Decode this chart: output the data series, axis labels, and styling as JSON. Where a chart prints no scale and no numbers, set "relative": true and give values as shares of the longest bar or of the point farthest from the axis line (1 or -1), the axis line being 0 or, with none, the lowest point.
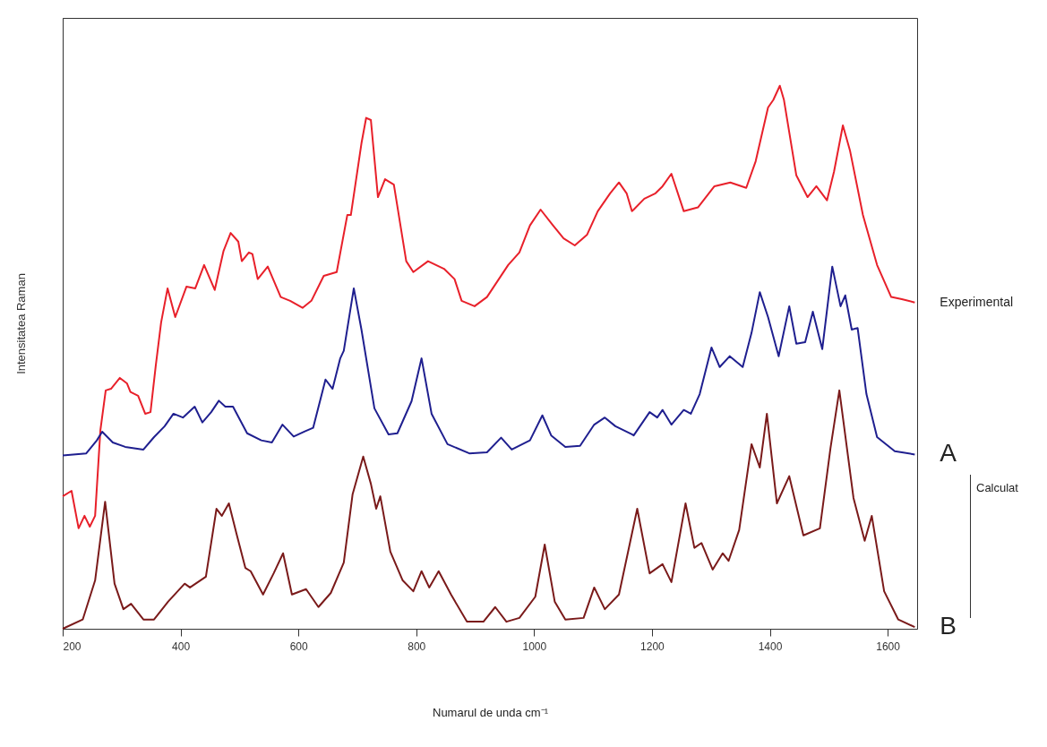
{
  "chart_data": {
    "type": "line",
    "relative": true,
    "xlabel": "Numarul de unda cm⁻¹",
    "ylabel": "Intensitatea Raman",
    "xlim": [
      200,
      1650
    ],
    "xticks": [
      200,
      400,
      600,
      800,
      1000,
      1200,
      1400,
      1600
    ],
    "grid": false,
    "legend": false,
    "annotations": [
      "Calculat"
    ],
    "series": [
      {
        "name": "Experimental",
        "color": "#e8202a",
        "x": [
          200,
          215,
          227,
          237,
          246,
          255,
          264,
          273,
          282,
          297,
          309,
          315,
          328,
          340,
          349,
          358,
          367,
          378,
          391,
          410,
          425,
          440,
          458,
          473,
          485,
          498,
          504,
          516,
          522,
          531,
          548,
          570,
          586,
          607,
          622,
          643,
          665,
          683,
          689,
          707,
          715,
          723,
          735,
          747,
          762,
          783,
          795,
          820,
          847,
          865,
          877,
          899,
          920,
          956,
          975,
          993,
          1011,
          1032,
          1050,
          1069,
          1090,
          1108,
          1129,
          1144,
          1157,
          1166,
          1169,
          1187,
          1206,
          1218,
          1233,
          1254,
          1278,
          1306,
          1333,
          1360,
          1376,
          1397,
          1406,
          1417,
          1424,
          1445,
          1464,
          1479,
          1497,
          1509,
          1524,
          1536,
          1558,
          1582,
          1606,
          1624,
          1646
        ],
        "values": [
          0.244,
          0.254,
          0.185,
          0.208,
          0.188,
          0.208,
          0.366,
          0.439,
          0.442,
          0.462,
          0.452,
          0.436,
          0.429,
          0.396,
          0.399,
          0.485,
          0.564,
          0.627,
          0.574,
          0.63,
          0.627,
          0.67,
          0.624,
          0.696,
          0.729,
          0.713,
          0.677,
          0.693,
          0.69,
          0.644,
          0.667,
          0.611,
          0.604,
          0.591,
          0.604,
          0.65,
          0.657,
          0.762,
          0.762,
          0.894,
          0.941,
          0.937,
          0.795,
          0.828,
          0.818,
          0.677,
          0.657,
          0.677,
          0.663,
          0.644,
          0.604,
          0.594,
          0.611,
          0.67,
          0.693,
          0.743,
          0.772,
          0.743,
          0.719,
          0.706,
          0.726,
          0.769,
          0.802,
          0.822,
          0.802,
          0.769,
          0.772,
          0.792,
          0.802,
          0.815,
          0.838,
          0.769,
          0.776,
          0.815,
          0.822,
          0.812,
          0.861,
          0.96,
          0.974,
          1.0,
          0.974,
          0.835,
          0.795,
          0.815,
          0.789,
          0.842,
          0.927,
          0.881,
          0.762,
          0.67,
          0.611,
          0.607,
          0.601
        ]
      },
      {
        "name": "A",
        "color": "#1f1f8f",
        "x": [
          200,
          240,
          258,
          267,
          285,
          306,
          337,
          355,
          373,
          388,
          404,
          424,
          437,
          452,
          465,
          476,
          489,
          513,
          537,
          555,
          573,
          592,
          610,
          625,
          646,
          658,
          671,
          677,
          694,
          707,
          729,
          753,
          768,
          792,
          809,
          826,
          853,
          890,
          920,
          944,
          962,
          993,
          1014,
          1029,
          1053,
          1078,
          1102,
          1120,
          1138,
          1166,
          1169,
          1196,
          1209,
          1218,
          1233,
          1254,
          1266,
          1281,
          1301,
          1315,
          1332,
          1354,
          1369,
          1383,
          1397,
          1415,
          1433,
          1445,
          1460,
          1473,
          1489,
          1506,
          1520,
          1528,
          1539,
          1549,
          1564,
          1582,
          1612,
          1646
        ],
        "values": [
          0.319,
          0.323,
          0.347,
          0.363,
          0.343,
          0.335,
          0.33,
          0.353,
          0.373,
          0.396,
          0.389,
          0.409,
          0.38,
          0.399,
          0.42,
          0.409,
          0.409,
          0.36,
          0.347,
          0.343,
          0.376,
          0.354,
          0.363,
          0.37,
          0.459,
          0.442,
          0.498,
          0.512,
          0.627,
          0.551,
          0.406,
          0.358,
          0.36,
          0.419,
          0.498,
          0.396,
          0.34,
          0.323,
          0.325,
          0.352,
          0.33,
          0.347,
          0.393,
          0.356,
          0.335,
          0.337,
          0.376,
          0.389,
          0.373,
          0.358,
          0.356,
          0.399,
          0.389,
          0.403,
          0.376,
          0.403,
          0.396,
          0.432,
          0.518,
          0.482,
          0.502,
          0.482,
          0.545,
          0.62,
          0.574,
          0.502,
          0.594,
          0.525,
          0.528,
          0.584,
          0.515,
          0.667,
          0.594,
          0.614,
          0.551,
          0.554,
          0.432,
          0.353,
          0.327,
          0.321
        ]
      },
      {
        "name": "B",
        "color": "#7a1a1a",
        "x": [
          200,
          234,
          255,
          272,
          288,
          303,
          316,
          337,
          355,
          379,
          407,
          416,
          443,
          461,
          470,
          482,
          495,
          510,
          519,
          540,
          558,
          574,
          589,
          613,
          634,
          655,
          677,
          692,
          710,
          723,
          732,
          739,
          756,
          777,
          795,
          809,
          822,
          838,
          859,
          886,
          914,
          934,
          953,
          975,
          1002,
          1018,
          1035,
          1053,
          1084,
          1102,
          1120,
          1144,
          1175,
          1196,
          1218,
          1233,
          1257,
          1272,
          1284,
          1303,
          1320,
          1330,
          1348,
          1369,
          1383,
          1395,
          1412,
          1433,
          1457,
          1485,
          1503,
          1518,
          1542,
          1561,
          1573,
          1594,
          1618,
          1646
        ],
        "values": [
          0,
          0.017,
          0.089,
          0.234,
          0.083,
          0.036,
          0.046,
          0.017,
          0.017,
          0.05,
          0.083,
          0.076,
          0.096,
          0.221,
          0.208,
          0.231,
          0.175,
          0.112,
          0.106,
          0.063,
          0.102,
          0.139,
          0.063,
          0.073,
          0.04,
          0.066,
          0.122,
          0.248,
          0.317,
          0.267,
          0.221,
          0.244,
          0.142,
          0.089,
          0.069,
          0.106,
          0.076,
          0.106,
          0.063,
          0.013,
          0.013,
          0.04,
          0.013,
          0.02,
          0.059,
          0.155,
          0.05,
          0.017,
          0.02,
          0.076,
          0.036,
          0.063,
          0.221,
          0.102,
          0.119,
          0.086,
          0.231,
          0.149,
          0.158,
          0.109,
          0.139,
          0.125,
          0.182,
          0.34,
          0.297,
          0.396,
          0.231,
          0.281,
          0.172,
          0.185,
          0.333,
          0.439,
          0.241,
          0.162,
          0.208,
          0.069,
          0.017,
          0.003
        ]
      }
    ]
  }
}
